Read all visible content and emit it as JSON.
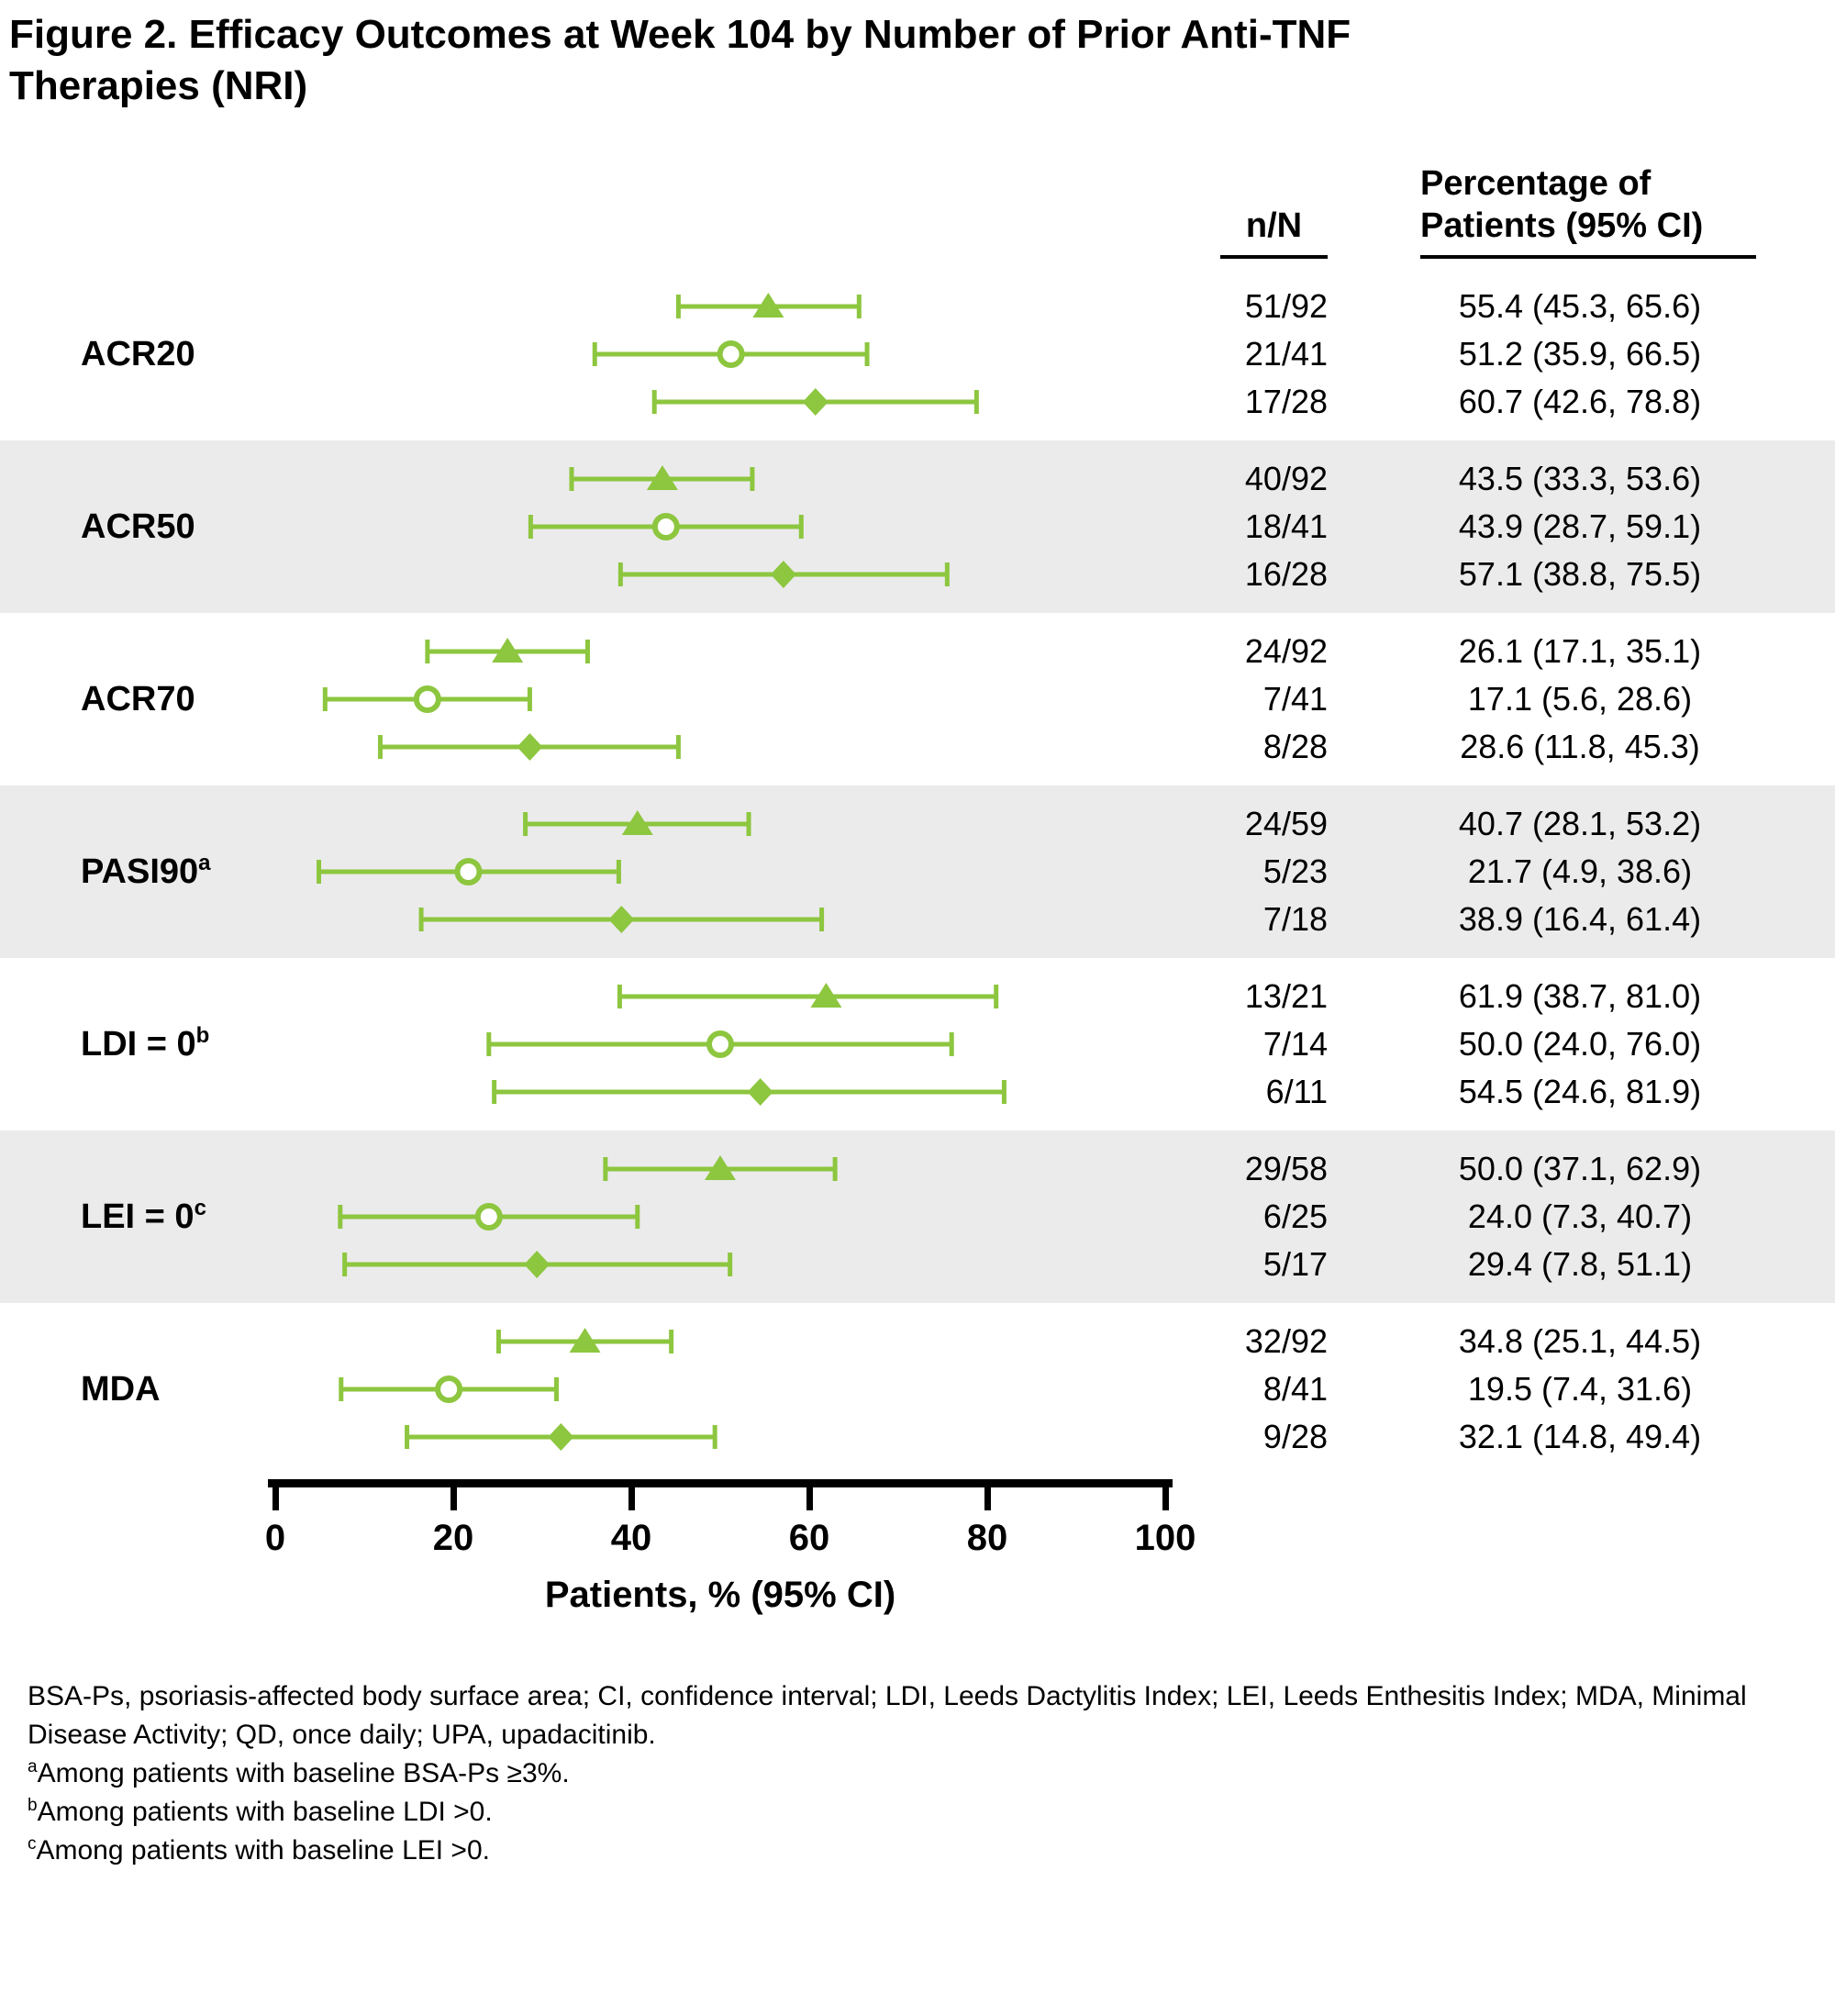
{
  "title": {
    "line1": "Figure 2. Efficacy Outcomes at Week 104 by Number of Prior Anti-TNF",
    "line2": "Therapies (NRI)"
  },
  "columns": {
    "n_label": "n/N",
    "pct_label": "Percentage of Patients (95% CI)"
  },
  "chart_data": {
    "type": "forest",
    "title": "Efficacy Outcomes at Week 104 by Number of Prior Anti-TNF Therapies (NRI)",
    "xlabel": "Patients, % (95% CI)",
    "xlim": [
      0,
      100
    ],
    "xticks": [
      0,
      20,
      40,
      60,
      80,
      100
    ],
    "grid": false,
    "legend": "none",
    "marker_color": "#8dc63f",
    "shaded_band_color": "#ebebeb",
    "marker_shapes": [
      "triangle",
      "circle-open",
      "diamond"
    ],
    "groups": [
      {
        "label": "ACR20",
        "sup": "",
        "shaded": false,
        "rows": [
          {
            "marker": "triangle",
            "n": "51/92",
            "est": 55.4,
            "lo": 45.3,
            "hi": 65.6,
            "pct": "55.4 (45.3, 65.6)"
          },
          {
            "marker": "circle",
            "n": "21/41",
            "est": 51.2,
            "lo": 35.9,
            "hi": 66.5,
            "pct": "51.2 (35.9, 66.5)"
          },
          {
            "marker": "diamond",
            "n": "17/28",
            "est": 60.7,
            "lo": 42.6,
            "hi": 78.8,
            "pct": "60.7 (42.6, 78.8)"
          }
        ]
      },
      {
        "label": "ACR50",
        "sup": "",
        "shaded": true,
        "rows": [
          {
            "marker": "triangle",
            "n": "40/92",
            "est": 43.5,
            "lo": 33.3,
            "hi": 53.6,
            "pct": "43.5 (33.3, 53.6)"
          },
          {
            "marker": "circle",
            "n": "18/41",
            "est": 43.9,
            "lo": 28.7,
            "hi": 59.1,
            "pct": "43.9 (28.7, 59.1)"
          },
          {
            "marker": "diamond",
            "n": "16/28",
            "est": 57.1,
            "lo": 38.8,
            "hi": 75.5,
            "pct": "57.1 (38.8, 75.5)"
          }
        ]
      },
      {
        "label": "ACR70",
        "sup": "",
        "shaded": false,
        "rows": [
          {
            "marker": "triangle",
            "n": "24/92",
            "est": 26.1,
            "lo": 17.1,
            "hi": 35.1,
            "pct": "26.1 (17.1, 35.1)"
          },
          {
            "marker": "circle",
            "n": "7/41",
            "est": 17.1,
            "lo": 5.6,
            "hi": 28.6,
            "pct": "17.1 (5.6, 28.6)"
          },
          {
            "marker": "diamond",
            "n": "8/28",
            "est": 28.6,
            "lo": 11.8,
            "hi": 45.3,
            "pct": "28.6 (11.8, 45.3)"
          }
        ]
      },
      {
        "label": "PASI90",
        "sup": "a",
        "shaded": true,
        "rows": [
          {
            "marker": "triangle",
            "n": "24/59",
            "est": 40.7,
            "lo": 28.1,
            "hi": 53.2,
            "pct": "40.7 (28.1, 53.2)"
          },
          {
            "marker": "circle",
            "n": "5/23",
            "est": 21.7,
            "lo": 4.9,
            "hi": 38.6,
            "pct": "21.7 (4.9, 38.6)"
          },
          {
            "marker": "diamond",
            "n": "7/18",
            "est": 38.9,
            "lo": 16.4,
            "hi": 61.4,
            "pct": "38.9 (16.4, 61.4)"
          }
        ]
      },
      {
        "label": "LDI = 0",
        "sup": "b",
        "shaded": false,
        "rows": [
          {
            "marker": "triangle",
            "n": "13/21",
            "est": 61.9,
            "lo": 38.7,
            "hi": 81.0,
            "pct": "61.9 (38.7, 81.0)"
          },
          {
            "marker": "circle",
            "n": "7/14",
            "est": 50.0,
            "lo": 24.0,
            "hi": 76.0,
            "pct": "50.0 (24.0, 76.0)"
          },
          {
            "marker": "diamond",
            "n": "6/11",
            "est": 54.5,
            "lo": 24.6,
            "hi": 81.9,
            "pct": "54.5 (24.6, 81.9)"
          }
        ]
      },
      {
        "label": "LEI = 0",
        "sup": "c",
        "shaded": true,
        "rows": [
          {
            "marker": "triangle",
            "n": "29/58",
            "est": 50.0,
            "lo": 37.1,
            "hi": 62.9,
            "pct": "50.0 (37.1, 62.9)"
          },
          {
            "marker": "circle",
            "n": "6/25",
            "est": 24.0,
            "lo": 7.3,
            "hi": 40.7,
            "pct": "24.0 (7.3, 40.7)"
          },
          {
            "marker": "diamond",
            "n": "5/17",
            "est": 29.4,
            "lo": 7.8,
            "hi": 51.1,
            "pct": "29.4 (7.8, 51.1)"
          }
        ]
      },
      {
        "label": "MDA",
        "sup": "",
        "shaded": false,
        "rows": [
          {
            "marker": "triangle",
            "n": "32/92",
            "est": 34.8,
            "lo": 25.1,
            "hi": 44.5,
            "pct": "34.8 (25.1, 44.5)"
          },
          {
            "marker": "circle",
            "n": "8/41",
            "est": 19.5,
            "lo": 7.4,
            "hi": 31.6,
            "pct": "19.5 (7.4, 31.6)"
          },
          {
            "marker": "diamond",
            "n": "9/28",
            "est": 32.1,
            "lo": 14.8,
            "hi": 49.4,
            "pct": "32.1 (14.8, 49.4)"
          }
        ]
      }
    ]
  },
  "footnotes": {
    "abbreviations": "BSA-Ps, psoriasis-affected body surface area; CI, confidence interval; LDI, Leeds Dactylitis Index; LEI, Leeds Enthesitis Index; MDA, Minimal Disease Activity; QD, once daily; UPA, upadacitinib.",
    "items": [
      {
        "sup": "a",
        "text": "Among patients with baseline BSA-Ps ≥3%."
      },
      {
        "sup": "b",
        "text": "Among patients with baseline LDI >0."
      },
      {
        "sup": "c",
        "text": "Among patients with baseline LEI >0."
      }
    ]
  }
}
